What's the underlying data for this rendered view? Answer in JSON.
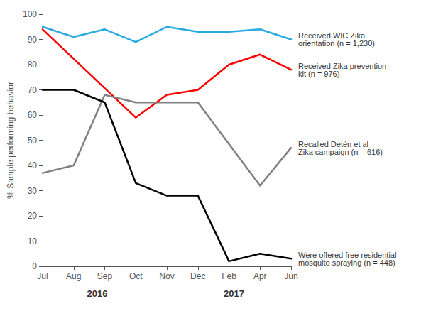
{
  "chart_data": {
    "type": "line",
    "categories": [
      "Jul",
      "Aug",
      "Sep",
      "Oct",
      "Nov",
      "Dec",
      "Feb",
      "Apr",
      "Jun"
    ],
    "series": [
      {
        "name": "Received WIC Zika\norientation (n = 1,230)",
        "color": "#29ABE2",
        "values": [
          95,
          91,
          94,
          89,
          95,
          93,
          93,
          94,
          90
        ]
      },
      {
        "name": "Received Zika prevention\nkit (n = 976)",
        "color": "#FF0000",
        "values": [
          94,
          null,
          null,
          59,
          68,
          70,
          80,
          84,
          78
        ]
      },
      {
        "name": "Recalled Detén et al\nZika campaign (n = 616)",
        "color": "#808080",
        "values": [
          37,
          40,
          68,
          65,
          65,
          65,
          null,
          32,
          47
        ]
      },
      {
        "name": "Were offered free residential\nmosquito spraying (n = 448)",
        "color": "#000000",
        "values": [
          70,
          70,
          65,
          33,
          28,
          28,
          2,
          5,
          3
        ]
      }
    ],
    "ylabel": "% Sample performing behavior",
    "ylim": [
      0,
      100
    ],
    "yticks": [
      0,
      10,
      20,
      30,
      40,
      50,
      60,
      70,
      80,
      90,
      100
    ],
    "grid": false,
    "annotations": [
      {
        "text": "2016"
      },
      {
        "text": "2017"
      }
    ]
  }
}
